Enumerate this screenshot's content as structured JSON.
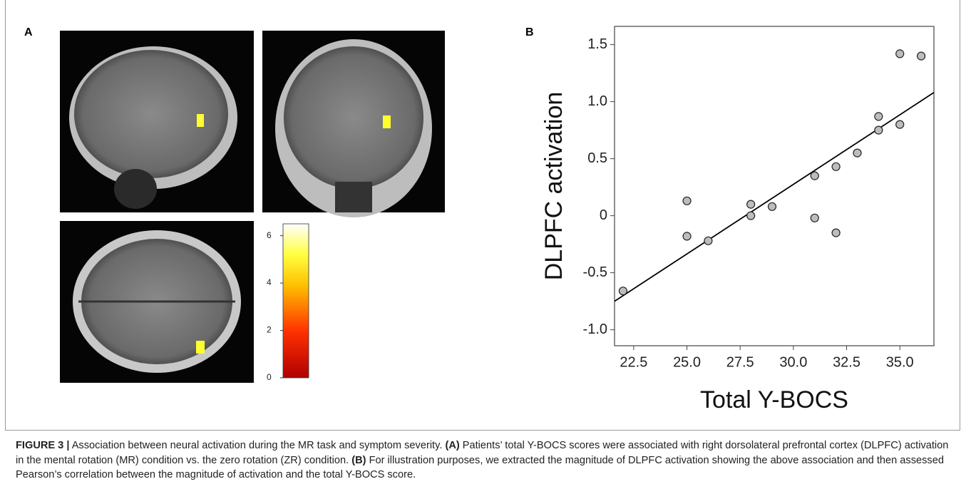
{
  "panels": {
    "a": "A",
    "b": "B"
  },
  "colorbar": {
    "lim": [
      0,
      6.5
    ],
    "ticks": [
      0,
      2,
      4,
      6
    ]
  },
  "chart_data": {
    "type": "scatter",
    "x_label": "Total Y-BOCS",
    "y_label": "DLPFC activation",
    "x": [
      22,
      25,
      25,
      26,
      28,
      28,
      29,
      31,
      31,
      32,
      32,
      33,
      34,
      34,
      35,
      35,
      36
    ],
    "values": [
      -0.66,
      0.13,
      -0.18,
      -0.22,
      0.1,
      0.0,
      0.08,
      0.35,
      -0.02,
      0.43,
      -0.15,
      0.55,
      0.87,
      0.75,
      1.42,
      0.8,
      1.4
    ],
    "color": "#bdbdbd",
    "fit_line": {
      "x": [
        21.6,
        36.6
      ],
      "values": [
        -0.75,
        1.08
      ],
      "color": "#000000"
    },
    "xlim": [
      21.6,
      36.6
    ],
    "ylim": [
      -1.14,
      1.66
    ],
    "xticks": [
      22.5,
      {
        "value": 25,
        "label": "25.0"
      },
      27.5,
      {
        "value": 30,
        "label": "30.0"
      },
      32.5,
      {
        "value": 35,
        "label": "35.0"
      }
    ],
    "yticks": [
      1.5,
      {
        "value": 1,
        "label": "1.0"
      },
      0.5,
      0,
      -0.5,
      {
        "value": -1,
        "label": "-1.0"
      }
    ]
  },
  "caption": {
    "label": "FIGURE 3 |",
    "text_1": "Association between neural activation during the MR task and symptom severity.",
    "ref_a": "(A)",
    "text_2": "Patients’ total Y-BOCS scores were associated with right dorsolateral prefrontal cortex (DLPFC) activation in the mental rotation (MR) condition vs. the zero rotation (ZR) condition.",
    "ref_b": "(B)",
    "text_3": "For illustration purposes, we extracted the magnitude of DLPFC activation showing the above association and then assessed Pearson’s correlation between the magnitude of activation and the total Y-BOCS score."
  }
}
